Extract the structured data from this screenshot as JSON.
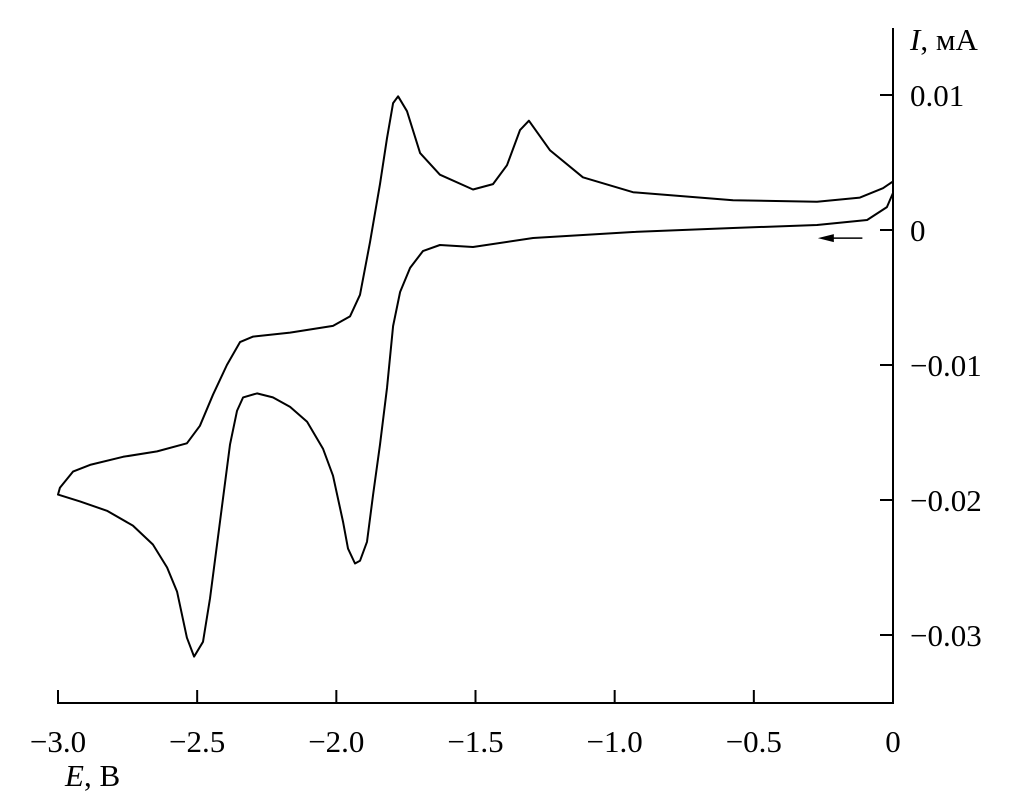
{
  "chart_data": {
    "type": "line",
    "title": "",
    "xlabel": {
      "symbol": "E",
      "unit": ", В"
    },
    "ylabel": {
      "symbol": "I",
      "unit": ", мА"
    },
    "xlim": [
      -3.0,
      0
    ],
    "ylim": [
      -0.035,
      0.0145
    ],
    "grid": false,
    "x_ticks": [
      -3.0,
      -2.5,
      -2.0,
      -1.5,
      -1.0,
      -0.5,
      0
    ],
    "x_tick_labels": [
      "−3.0",
      "−2.5",
      "−2.0",
      "−1.5",
      "−1.0",
      "−0.5",
      "0"
    ],
    "y_ticks": [
      0.01,
      0,
      -0.01,
      -0.02,
      -0.03
    ],
    "y_tick_labels": [
      "0.01",
      "0",
      "−0.01",
      "−0.02",
      "−0.03"
    ],
    "annotations": [
      {
        "type": "arrow",
        "direction": "left",
        "x_from": -0.11,
        "x_to": -0.27,
        "y": -0.0006
      }
    ],
    "series": [
      {
        "color": "#000000",
        "points": [
          [
            0.0,
            0.00274
          ],
          [
            -0.022,
            0.0017
          ],
          [
            -0.093,
            0.00074
          ],
          [
            -0.273,
            0.00037
          ],
          [
            -0.575,
            0.00015
          ],
          [
            -0.934,
            -0.00015
          ],
          [
            -1.293,
            -0.00059
          ],
          [
            -1.509,
            -0.00126
          ],
          [
            -1.628,
            -0.00111
          ],
          [
            -1.689,
            -0.00156
          ],
          [
            -1.735,
            -0.00281
          ],
          [
            -1.771,
            -0.00459
          ],
          [
            -1.796,
            -0.00711
          ],
          [
            -1.818,
            -0.0117
          ],
          [
            -1.843,
            -0.0159
          ],
          [
            -1.868,
            -0.0196
          ],
          [
            -1.89,
            -0.0231
          ],
          [
            -1.915,
            -0.0245
          ],
          [
            -1.933,
            -0.0247
          ],
          [
            -1.958,
            -0.0236
          ],
          [
            -1.976,
            -0.0216
          ],
          [
            -2.012,
            -0.0182
          ],
          [
            -2.048,
            -0.0162
          ],
          [
            -2.105,
            -0.0142
          ],
          [
            -2.166,
            -0.0131
          ],
          [
            -2.228,
            -0.0124
          ],
          [
            -2.285,
            -0.0121
          ],
          [
            -2.335,
            -0.0124
          ],
          [
            -2.357,
            -0.0134
          ],
          [
            -2.382,
            -0.0159
          ],
          [
            -2.418,
            -0.0216
          ],
          [
            -2.454,
            -0.0273
          ],
          [
            -2.479,
            -0.0305
          ],
          [
            -2.511,
            -0.0316
          ],
          [
            -2.537,
            -0.0302
          ],
          [
            -2.572,
            -0.0268
          ],
          [
            -2.608,
            -0.025
          ],
          [
            -2.659,
            -0.0233
          ],
          [
            -2.731,
            -0.0219
          ],
          [
            -2.824,
            -0.0208
          ],
          [
            -2.921,
            -0.0201
          ],
          [
            -3.0,
            -0.0196
          ],
          [
            -2.993,
            -0.0191
          ],
          [
            -2.946,
            -0.0179
          ],
          [
            -2.885,
            -0.0174
          ],
          [
            -2.766,
            -0.0168
          ],
          [
            -2.644,
            -0.0164
          ],
          [
            -2.537,
            -0.0158
          ],
          [
            -2.49,
            -0.0145
          ],
          [
            -2.443,
            -0.0122
          ],
          [
            -2.393,
            -0.01
          ],
          [
            -2.346,
            -0.0083
          ],
          [
            -2.299,
            -0.0079
          ],
          [
            -2.166,
            -0.0076
          ],
          [
            -2.012,
            -0.0071
          ],
          [
            -1.951,
            -0.0064
          ],
          [
            -1.915,
            -0.0048
          ],
          [
            -1.879,
            -0.0009
          ],
          [
            -1.843,
            0.0034
          ],
          [
            -1.818,
            0.0068
          ],
          [
            -1.796,
            0.0094
          ],
          [
            -1.778,
            0.0099
          ],
          [
            -1.746,
            0.0088
          ],
          [
            -1.699,
            0.0057
          ],
          [
            -1.628,
            0.0041
          ],
          [
            -1.509,
            0.003
          ],
          [
            -1.437,
            0.0034
          ],
          [
            -1.387,
            0.0048
          ],
          [
            -1.34,
            0.0074
          ],
          [
            -1.308,
            0.0081
          ],
          [
            -1.232,
            0.0059
          ],
          [
            -1.114,
            0.0039
          ],
          [
            -0.934,
            0.0028
          ],
          [
            -0.575,
            0.0022
          ],
          [
            -0.273,
            0.0021
          ],
          [
            -0.119,
            0.0024
          ],
          [
            -0.036,
            0.0031
          ],
          [
            0.0,
            0.0036
          ]
        ]
      }
    ]
  }
}
